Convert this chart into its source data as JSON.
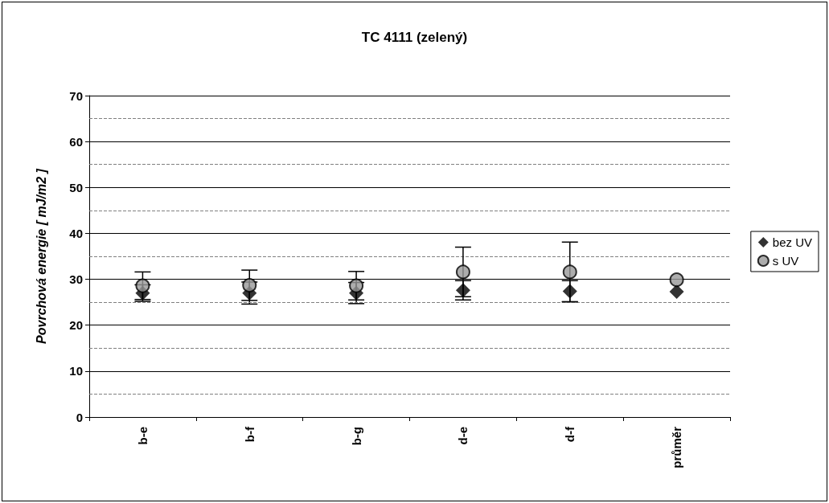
{
  "chart_data": {
    "type": "scatter",
    "title": "TC 4111 (zelený)",
    "ylabel": "Povrchová energie [ mJ/m2 ]",
    "categories": [
      "b-e",
      "b-f",
      "b-g",
      "d-e",
      "d-f",
      "průměr"
    ],
    "series": [
      {
        "name": "bez UV",
        "color": "#000000",
        "marker": "diamond",
        "values": [
          27.0,
          27.0,
          27.0,
          27.6,
          27.4,
          27.3
        ],
        "errors": [
          1.8,
          2.4,
          2.3,
          2.1,
          2.3,
          null
        ]
      },
      {
        "name": "s UV",
        "color": "#999999",
        "marker": "circle",
        "values": [
          28.6,
          28.7,
          28.6,
          31.6,
          31.6,
          29.9
        ],
        "errors": [
          3.0,
          3.3,
          3.1,
          5.4,
          6.5,
          null
        ]
      }
    ],
    "ylim": [
      0,
      70
    ],
    "yticks": [
      0,
      10,
      20,
      30,
      40,
      50,
      60,
      70
    ],
    "grid": "y",
    "legend": "right",
    "ref_lines": [
      {
        "axis": "y",
        "value": 5,
        "color": "#808080",
        "line_style": "dashed"
      },
      {
        "axis": "y",
        "value": 15,
        "color": "#808080",
        "line_style": "dashed"
      },
      {
        "axis": "y",
        "value": 25,
        "color": "#808080",
        "line_style": "dashed"
      },
      {
        "axis": "y",
        "value": 35,
        "color": "#808080",
        "line_style": "dashed"
      },
      {
        "axis": "y",
        "value": 45,
        "color": "#808080",
        "line_style": "dashed"
      },
      {
        "axis": "y",
        "value": 55,
        "color": "#808080",
        "line_style": "dashed"
      },
      {
        "axis": "y",
        "value": 65,
        "color": "#808080",
        "line_style": "dashed"
      }
    ]
  }
}
